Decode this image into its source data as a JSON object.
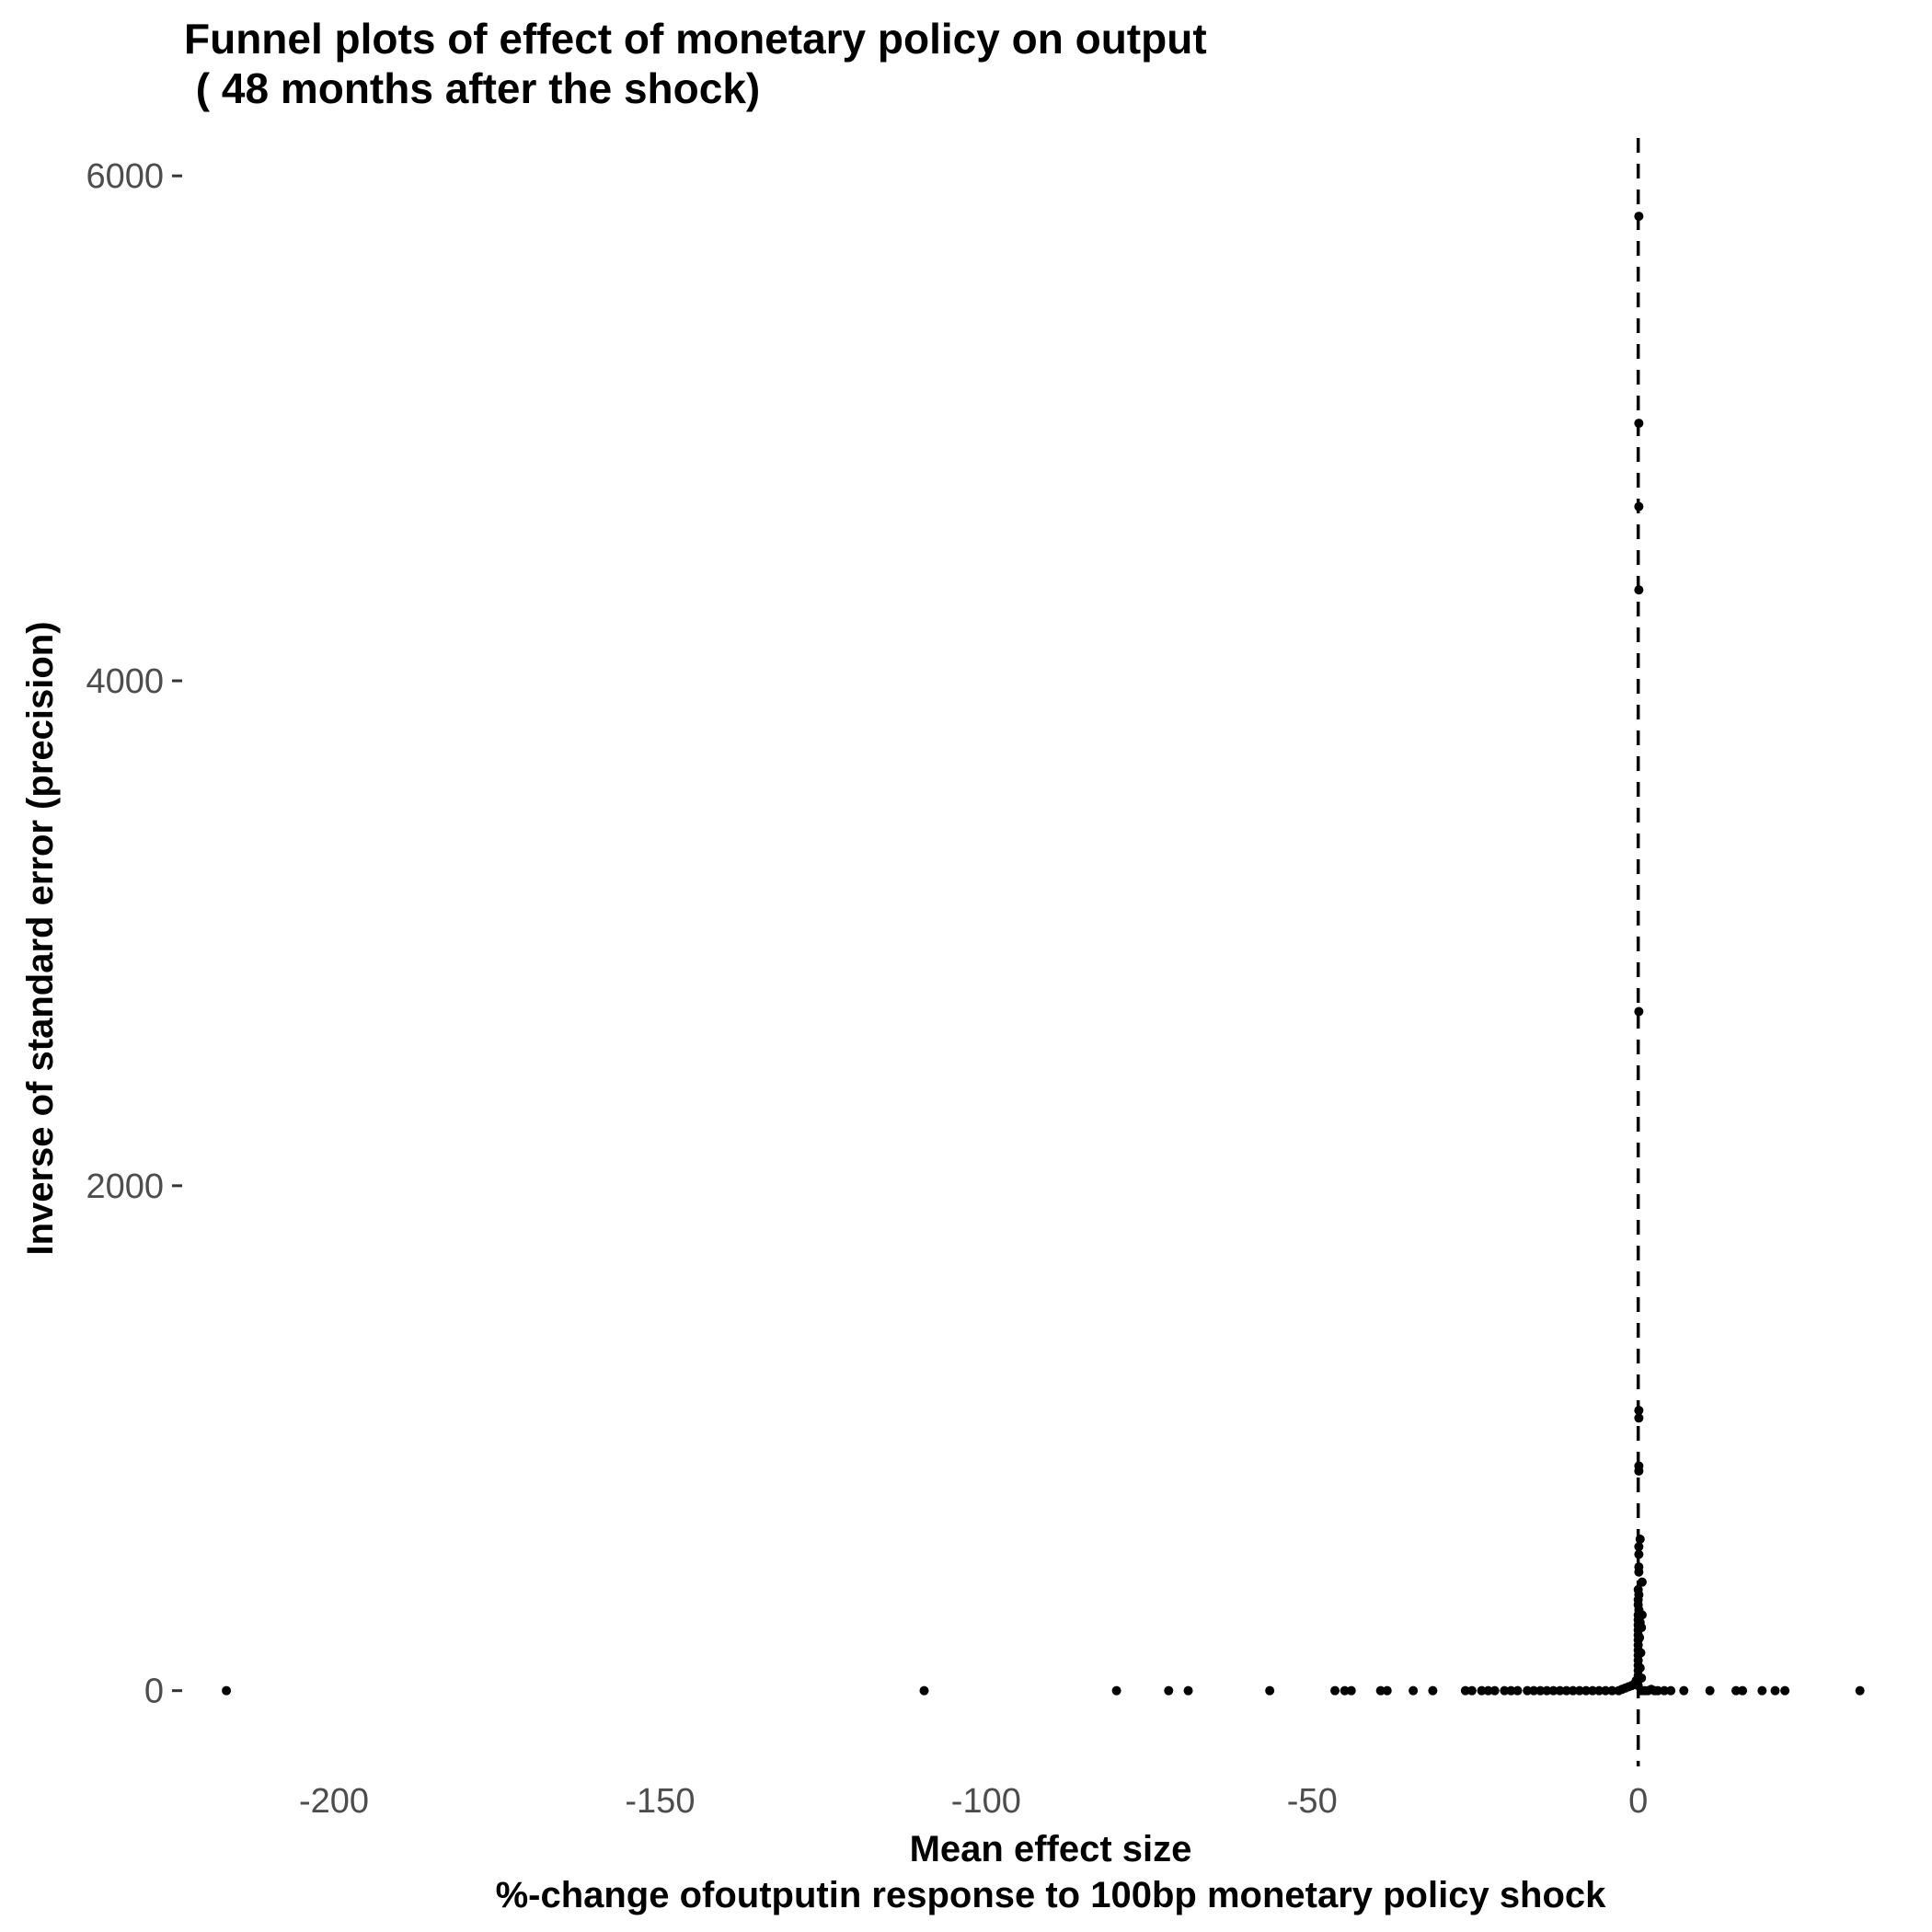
{
  "chart_data": {
    "type": "scatter",
    "title_line1": "Funnel plots of effect of monetary policy on output",
    "title_line2": " ( 48 months after the shock)",
    "xlabel_line1": "Mean effect size",
    "xlabel_line2": "%-change ofoutputin response to 100bp monetary policy shock",
    "ylabel": "Inverse of standard error (precision)",
    "xlim": [
      -223,
      38
    ],
    "ylim": [
      -300,
      6150
    ],
    "x_ticks": [
      -200,
      -150,
      -100,
      -50,
      0
    ],
    "x_tick_labels": [
      "-200",
      "-150",
      "-100",
      "-50",
      "0"
    ],
    "y_ticks": [
      0,
      2000,
      4000,
      6000
    ],
    "y_tick_labels": [
      "0",
      "2000",
      "4000",
      "6000"
    ],
    "reference_line_x": 0,
    "grid": false,
    "legend": "none",
    "points": [
      [
        -216.5,
        0
      ],
      [
        -109.5,
        0
      ],
      [
        -80,
        0
      ],
      [
        -72,
        0
      ],
      [
        -69,
        0
      ],
      [
        -56.5,
        0
      ],
      [
        -46.5,
        0
      ],
      [
        -45,
        0
      ],
      [
        -44,
        0
      ],
      [
        -39.5,
        0
      ],
      [
        -38.5,
        0
      ],
      [
        -34.5,
        0
      ],
      [
        -31.5,
        0
      ],
      [
        -26.5,
        0
      ],
      [
        -25.5,
        0
      ],
      [
        -24,
        0
      ],
      [
        -23,
        0
      ],
      [
        -22,
        0
      ],
      [
        -20.5,
        0
      ],
      [
        -19.5,
        0
      ],
      [
        -18.5,
        0
      ],
      [
        -17,
        0
      ],
      [
        -16,
        0
      ],
      [
        -15,
        0
      ],
      [
        -14,
        0
      ],
      [
        -13,
        0
      ],
      [
        -12,
        0
      ],
      [
        -11,
        0
      ],
      [
        -10,
        0
      ],
      [
        -9,
        0
      ],
      [
        -8,
        0
      ],
      [
        -7,
        0
      ],
      [
        -6,
        0
      ],
      [
        -5,
        0
      ],
      [
        -4,
        0
      ],
      [
        -3,
        0
      ],
      [
        -2.5,
        5
      ],
      [
        -2,
        10
      ],
      [
        -1.5,
        15
      ],
      [
        -1,
        20
      ],
      [
        -0.5,
        30
      ],
      [
        -0.3,
        40
      ],
      [
        0.5,
        0
      ],
      [
        1,
        0
      ],
      [
        1.5,
        0
      ],
      [
        2,
        5
      ],
      [
        2.5,
        0
      ],
      [
        3,
        0
      ],
      [
        4,
        0
      ],
      [
        5,
        0
      ],
      [
        7,
        0
      ],
      [
        11,
        0
      ],
      [
        15,
        0
      ],
      [
        16,
        0
      ],
      [
        19,
        0
      ],
      [
        21,
        0
      ],
      [
        22.5,
        0
      ],
      [
        34,
        0
      ],
      [
        0,
        20
      ],
      [
        0,
        40
      ],
      [
        0,
        60
      ],
      [
        0,
        80
      ],
      [
        0,
        100
      ],
      [
        0,
        120
      ],
      [
        0,
        140
      ],
      [
        0,
        160
      ],
      [
        0,
        180
      ],
      [
        0,
        200
      ],
      [
        0,
        220
      ],
      [
        0,
        240
      ],
      [
        0,
        260
      ],
      [
        0,
        280
      ],
      [
        0,
        300
      ],
      [
        0.1,
        320
      ],
      [
        0,
        340
      ],
      [
        0,
        360
      ],
      [
        0.1,
        380
      ],
      [
        0,
        400
      ],
      [
        0.5,
        50
      ],
      [
        0.3,
        90
      ],
      [
        0.4,
        150
      ],
      [
        0.2,
        210
      ],
      [
        0.5,
        250
      ],
      [
        0.3,
        270
      ],
      [
        0.6,
        300
      ],
      [
        0.6,
        430
      ],
      [
        0.1,
        470
      ],
      [
        0.1,
        490
      ],
      [
        0.1,
        540
      ],
      [
        0.1,
        570
      ],
      [
        0.3,
        600
      ],
      [
        0.1,
        870
      ],
      [
        0.1,
        890
      ],
      [
        0.1,
        1080
      ],
      [
        0.1,
        1110
      ],
      [
        0.1,
        2690
      ],
      [
        0.1,
        4360
      ],
      [
        0.1,
        4690
      ],
      [
        0.1,
        5020
      ],
      [
        0.1,
        5840
      ]
    ]
  }
}
